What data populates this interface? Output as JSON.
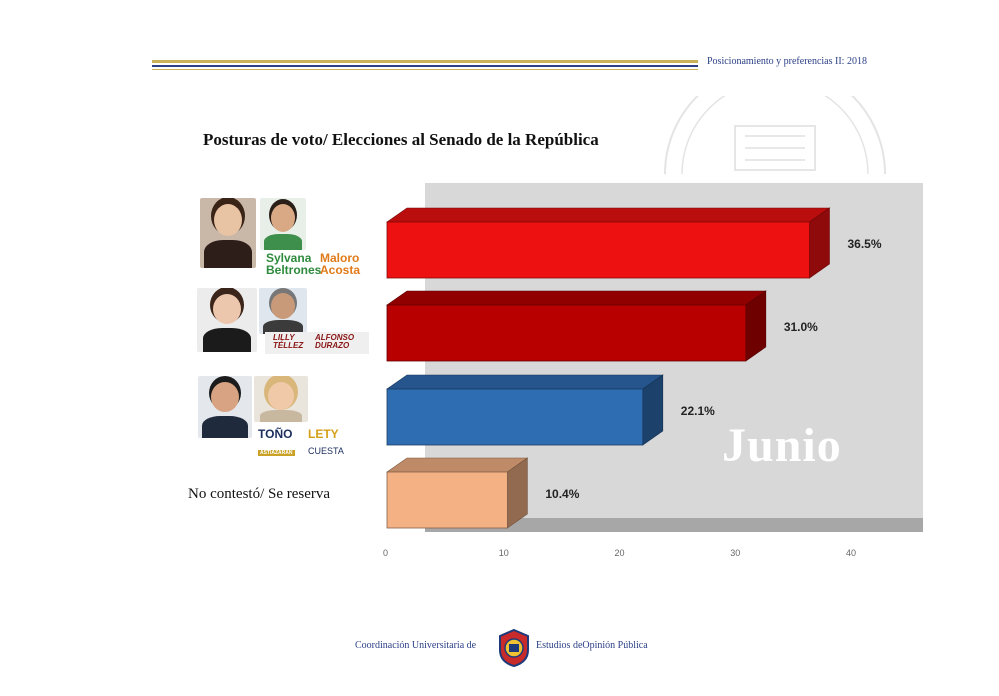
{
  "header": {
    "report_label": "Posicionamiento y preferencias II: 2018"
  },
  "chart_data": {
    "type": "bar",
    "orientation": "horizontal",
    "title": "Posturas de voto/ Elecciones al Senado de la República",
    "categories": [
      "Sylvana Beltrones / Maloro Acosta",
      "Lilly Téllez / Alfonso Durazo",
      "Toño Astiazarán / Lety Cuesta",
      "No contestó/ Se reserva"
    ],
    "values": [
      36.5,
      31.0,
      22.1,
      10.4
    ],
    "value_labels": [
      "36.5%",
      "31.0%",
      "22.1%",
      "10.4%"
    ],
    "colors": [
      "#ee1111",
      "#b80000",
      "#2f6db3",
      "#f3b184"
    ],
    "xlim": [
      0,
      40
    ],
    "x_ticks": [
      "0",
      "10",
      "20",
      "30",
      "40"
    ],
    "xlabel": "",
    "ylabel": "",
    "grid": false,
    "watermark": "Junio"
  },
  "candidates": [
    {
      "name1_a": "Sylvana",
      "name1_b": "Beltrones",
      "name2_a": "Maloro",
      "name2_b": "Acosta"
    },
    {
      "name1_a": "LILLY",
      "name1_b": "TÉLLEZ",
      "name2_a": "ALFONSO",
      "name2_b": "DURAZO"
    },
    {
      "name1_a": "TOÑO",
      "name1_b": "ASTIAZARÁN",
      "name2_a": "LETY",
      "name2_b": "CUESTA"
    }
  ],
  "no_answer_label": "No contestó/ Se reserva",
  "footer": {
    "left": "Coordinación Universitaria de",
    "right": "Estudios deOpinión Pública"
  }
}
